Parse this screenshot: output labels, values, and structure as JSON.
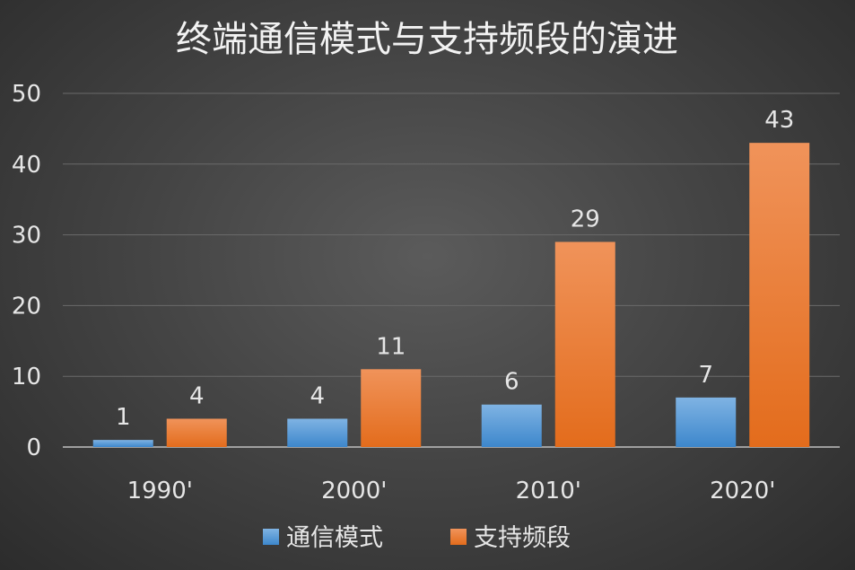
{
  "chart_data": {
    "type": "bar",
    "title": "终端通信模式与支持频段的演进",
    "categories": [
      "1990'",
      "2000'",
      "2010'",
      "2020'"
    ],
    "series": [
      {
        "name": "通信模式",
        "values": [
          1,
          4,
          6,
          7
        ],
        "color": "#5b9bd5"
      },
      {
        "name": "支持频段",
        "values": [
          4,
          11,
          29,
          43
        ],
        "color": "#ed7d31"
      }
    ],
    "ylim": [
      0,
      50
    ],
    "yticks": [
      0,
      10,
      20,
      30,
      40,
      50
    ],
    "grid": true,
    "legend": "bottom",
    "data_labels": true
  }
}
